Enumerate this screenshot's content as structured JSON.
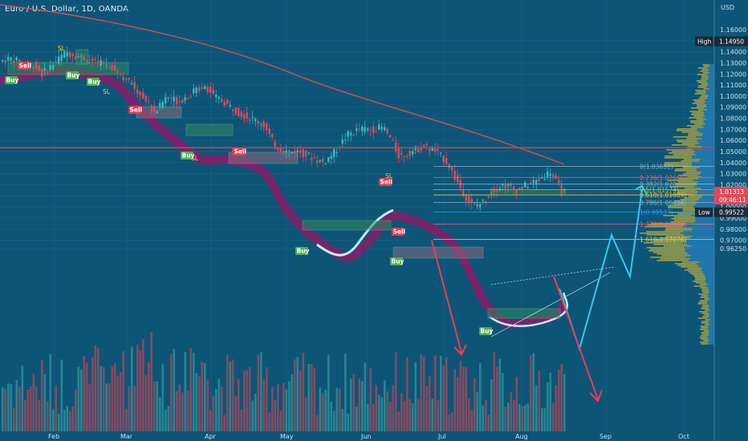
{
  "header": {
    "title": "Euro / U.S. Dollar, 1D, OANDA"
  },
  "chart_data": {
    "type": "candlestick",
    "currency": "USD",
    "x_ticks": [
      "Feb",
      "Mar",
      "Apr",
      "May",
      "Jun",
      "Jul",
      "Aug",
      "Sep",
      "Oct"
    ],
    "y_ticks": [
      "1.16000",
      "1.15000",
      "1.14000",
      "1.13000",
      "1.12000",
      "1.11000",
      "1.10000",
      "1.09000",
      "1.08000",
      "1.07000",
      "1.06000",
      "1.05000",
      "1.04000",
      "1.03000",
      "1.02000",
      "1.01000",
      "1.00000",
      "0.99000",
      "0.98000",
      "0.97000",
      "0.96250"
    ],
    "high": {
      "label": "High",
      "value": "1.14950"
    },
    "low": {
      "label": "Low",
      "value": "0.99522"
    },
    "current": {
      "value": "1.01313",
      "countdown": "09:46:11"
    },
    "fibonacci": [
      {
        "label": "0(1.03652)",
        "value": 1.03652,
        "color": "#8fb0c3"
      },
      {
        "label": "0.236(1.02666)",
        "value": 1.02666,
        "color": "#f0627a"
      },
      {
        "label": "0.382(1.020",
        "value": 1.0206,
        "color": "#7fb3c8"
      },
      {
        "label": "0.5(1.01574)",
        "value": 1.01574,
        "color": "#8bd14b"
      },
      {
        "label": "0.618(1.01089)",
        "value": 1.01089,
        "color": "#e0c446"
      },
      {
        "label": "0.786(1.00404)",
        "value": 1.00404,
        "color": "#8fb0c3"
      },
      {
        "label": "1(0.99537)",
        "value": 0.99537,
        "color": "#2f9bff"
      },
      {
        "label": "1.272(0.98446)",
        "value": 0.98446,
        "color": "#f0627a"
      },
      {
        "label": "1.618(0.97076)",
        "value": 0.97076,
        "color": "#d6d64a"
      }
    ],
    "horizontal_level": 1.0535,
    "signals": [
      {
        "text": "Sell",
        "kind": "sell"
      },
      {
        "text": "Buy",
        "kind": "buy"
      },
      {
        "text": "Sell",
        "kind": "sell"
      },
      {
        "text": "Buy",
        "kind": "buy"
      },
      {
        "text": "Buy",
        "kind": "buy"
      },
      {
        "text": "Sell",
        "kind": "sell"
      },
      {
        "text": "Buy",
        "kind": "buy"
      },
      {
        "text": "Sell",
        "kind": "sell"
      },
      {
        "text": "Buy",
        "kind": "buy"
      },
      {
        "text": "Sell",
        "kind": "sell"
      },
      {
        "text": "Sell",
        "kind": "sell"
      },
      {
        "text": "Buy",
        "kind": "buy"
      },
      {
        "text": "Buy",
        "kind": "buy"
      }
    ],
    "sl_labels": [
      "SL",
      "SL",
      "SL",
      "SL"
    ],
    "colors": {
      "bull": "#2bbfbf",
      "bear": "#e0495a",
      "ma": "#e0495a",
      "projection": "#35c9f0",
      "down_arrow": "#f03a55"
    }
  }
}
